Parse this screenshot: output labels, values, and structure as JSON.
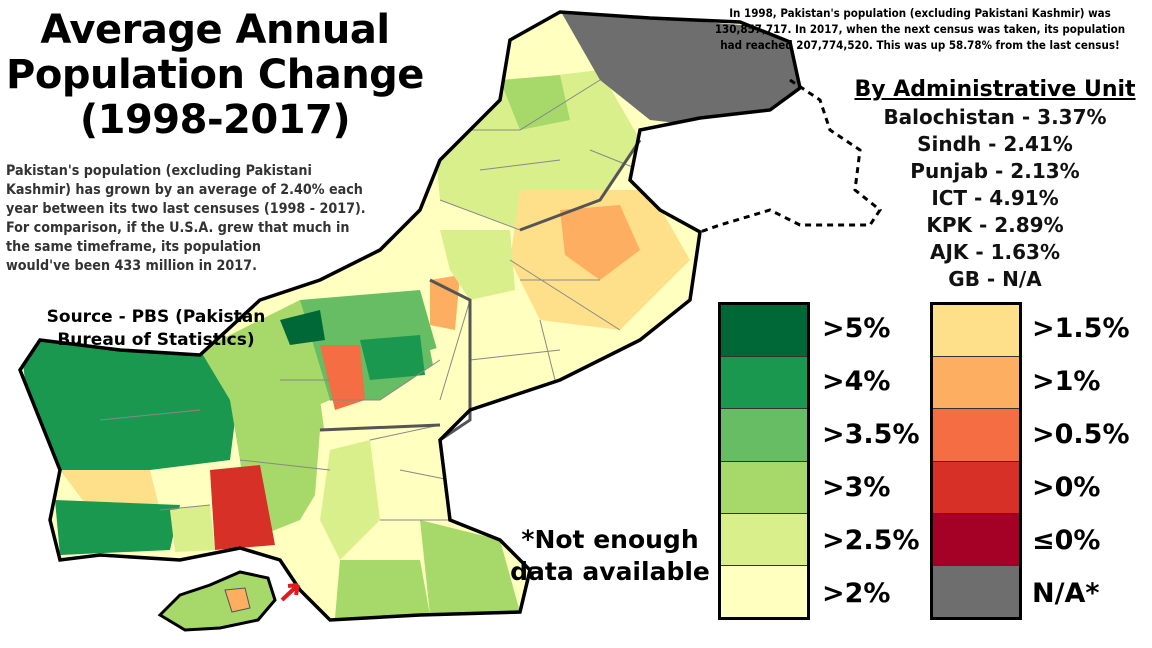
{
  "title_lines": [
    "Average Annual",
    "Population Change",
    "(1998-2017)"
  ],
  "description_lines": [
    "Pakistan's population (excluding Pakistani",
    "Kashmir) has grown by an average of 2.40% each",
    "year between its two last censuses (1998 - 2017).",
    "For comparison, if the U.S.A. grew that much in",
    "the same timeframe, its population",
    "would've been 433 million in 2017."
  ],
  "source_lines": [
    "Source - PBS (Pakistan",
    "Bureau of Statistics)"
  ],
  "census_lines": [
    "In 1998, Pakistan's population (excluding Pakistani Kashmir) was",
    "130,857,717. In 2017, when the next census was taken, its population",
    "had reached 207,774,520. This was up 58.78% from the last census!"
  ],
  "units": {
    "title": "By Administrative Unit",
    "rows": [
      "Balochistan - 3.37%",
      "Sindh - 2.41%",
      "Punjab - 2.13%",
      "ICT - 4.91%",
      "KPK - 2.89%",
      "AJK - 1.63%",
      "GB - N/A"
    ]
  },
  "legend": {
    "left": [
      {
        "label": ">5%",
        "color": "#006837"
      },
      {
        "label": ">4%",
        "color": "#1a9850"
      },
      {
        "label": ">3.5%",
        "color": "#66bd63"
      },
      {
        "label": ">3%",
        "color": "#a6d96a"
      },
      {
        "label": ">2.5%",
        "color": "#d9ef8b"
      },
      {
        "label": ">2%",
        "color": "#ffffbf"
      }
    ],
    "right": [
      {
        "label": ">1.5%",
        "color": "#fee08b"
      },
      {
        "label": ">1%",
        "color": "#fdae61"
      },
      {
        "label": ">0.5%",
        "color": "#f46d43"
      },
      {
        "label": ">0%",
        "color": "#d73027"
      },
      {
        "label": "≤0%",
        "color": "#a50026"
      },
      {
        "label": "N/A*",
        "color": "#6e6e6e"
      }
    ]
  },
  "note_lines": [
    "*Not enough",
    "data available"
  ]
}
